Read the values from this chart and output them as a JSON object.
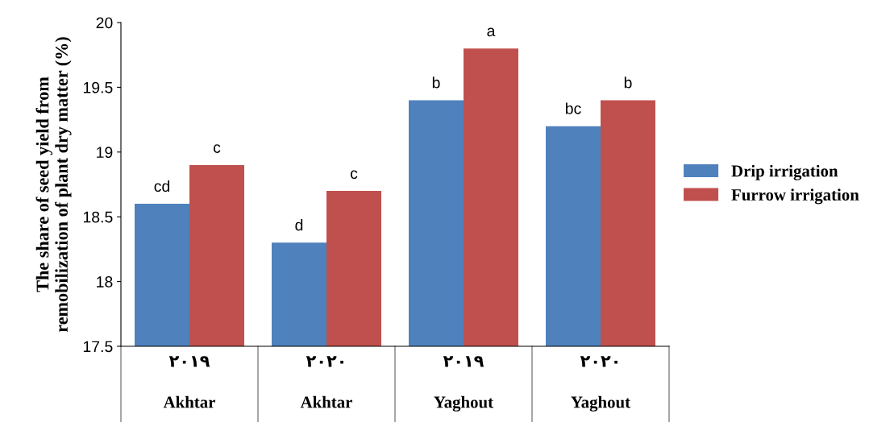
{
  "chart_data": {
    "type": "bar",
    "ylabel": "The share of seed yield from\nremobilization of plant dry matter (%)",
    "categories": [
      "۲۰۱۹\nAkhtar",
      "۲۰۲۰\nAkhtar",
      "۲۰۱۹\nYaghout",
      "۲۰۲۰\nYaghout"
    ],
    "series": [
      {
        "name": "Drip irrigation",
        "color": "#4f81bd",
        "values": [
          18.6,
          18.3,
          19.4,
          19.2
        ],
        "value_labels": [
          "cd",
          "d",
          "b",
          "bc"
        ]
      },
      {
        "name": "Furrow irrigation",
        "color": "#c0504d",
        "values": [
          18.9,
          18.7,
          19.8,
          19.4
        ],
        "value_labels": [
          "c",
          "c",
          "a",
          "b"
        ]
      }
    ],
    "ylim": [
      17.5,
      20
    ],
    "yticks": [
      17.5,
      18,
      18.5,
      19,
      19.5,
      20
    ],
    "grid": false,
    "legend": "right"
  }
}
